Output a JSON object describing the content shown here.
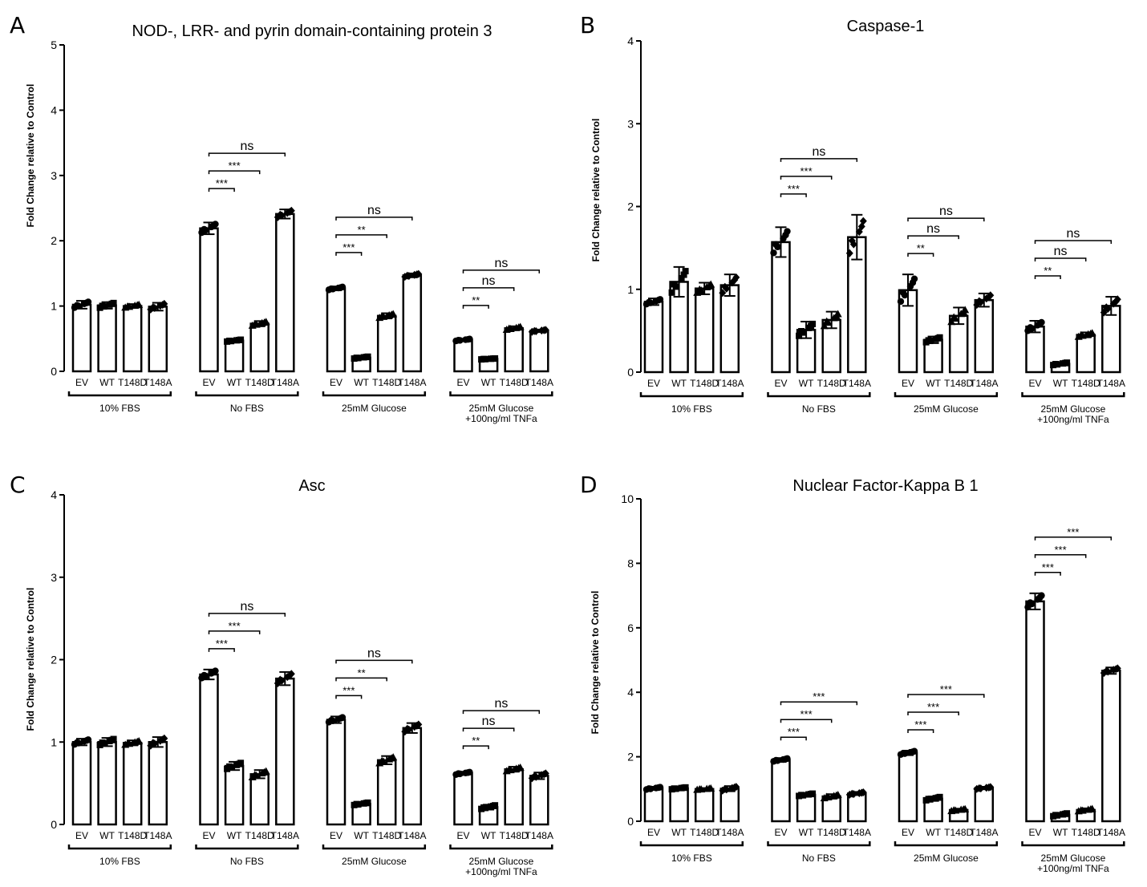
{
  "figure": {
    "panels": [
      {
        "letter": "A",
        "title": "NOD-, LRR- and pyrin domain-containing protein 3",
        "ylabel": "Fold Change relative to Control"
      },
      {
        "letter": "B",
        "title": "Caspase-1",
        "ylabel": "Fold Change relative to Control"
      },
      {
        "letter": "C",
        "title": "Asc",
        "ylabel": "Fold Change relative to Control"
      },
      {
        "letter": "D",
        "title": "Nuclear Factor-Kappa B 1",
        "ylabel": "Fold Change relative to Control"
      }
    ]
  },
  "chart_data": [
    {
      "type": "bar",
      "title": "NOD-, LRR- and pyrin domain-containing protein 3",
      "ylabel": "Fold Change relative to Control",
      "ylim": [
        0,
        5
      ],
      "yticks": [
        "0",
        "1",
        "2",
        "3",
        "4",
        "5"
      ],
      "categories": [
        "EV",
        "WT",
        "T148D",
        "T148A"
      ],
      "groups": [
        {
          "label": "10% FBS",
          "values": [
            1.02,
            1.01,
            1.0,
            0.99
          ],
          "errors": [
            0.06,
            0.05,
            0.03,
            0.06
          ],
          "sig": []
        },
        {
          "label": "No FBS",
          "values": [
            2.19,
            0.47,
            0.73,
            2.41
          ],
          "errors": [
            0.09,
            0.02,
            0.04,
            0.07
          ],
          "sig": [
            {
              "to": 1,
              "text": "***"
            },
            {
              "to": 2,
              "text": "***"
            },
            {
              "to": 3,
              "text": "ns"
            }
          ]
        },
        {
          "label": "25mM Glucose",
          "values": [
            1.27,
            0.21,
            0.85,
            1.47
          ],
          "errors": [
            0.03,
            0.02,
            0.04,
            0.03
          ],
          "sig": [
            {
              "to": 1,
              "text": "***"
            },
            {
              "to": 2,
              "text": "**"
            },
            {
              "to": 3,
              "text": "ns"
            }
          ]
        },
        {
          "label": "25mM Glucose\n+100ng/ml TNFa",
          "values": [
            0.48,
            0.19,
            0.66,
            0.62
          ],
          "errors": [
            0.02,
            0.01,
            0.03,
            0.02
          ],
          "sig": [
            {
              "to": 1,
              "text": "**"
            },
            {
              "to": 2,
              "text": "ns"
            },
            {
              "to": 3,
              "text": "ns"
            }
          ]
        }
      ]
    },
    {
      "type": "bar",
      "title": "Caspase-1",
      "ylabel": "Fold Change relative to Control",
      "ylim": [
        0,
        4
      ],
      "yticks": [
        "0",
        "1",
        "2",
        "3",
        "4"
      ],
      "categories": [
        "EV",
        "WT",
        "T148D",
        "T148A"
      ],
      "groups": [
        {
          "label": "10% FBS",
          "values": [
            0.85,
            1.09,
            1.01,
            1.05
          ],
          "errors": [
            0.04,
            0.18,
            0.07,
            0.13
          ],
          "sig": []
        },
        {
          "label": "No FBS",
          "values": [
            1.57,
            0.51,
            0.63,
            1.63
          ],
          "errors": [
            0.18,
            0.1,
            0.1,
            0.27
          ],
          "sig": [
            {
              "to": 1,
              "text": "***"
            },
            {
              "to": 2,
              "text": "***"
            },
            {
              "to": 3,
              "text": "ns"
            }
          ]
        },
        {
          "label": "25mM Glucose",
          "values": [
            0.99,
            0.39,
            0.68,
            0.87
          ],
          "errors": [
            0.19,
            0.04,
            0.1,
            0.08
          ],
          "sig": [
            {
              "to": 1,
              "text": "**"
            },
            {
              "to": 2,
              "text": "ns"
            },
            {
              "to": 3,
              "text": "ns"
            }
          ]
        },
        {
          "label": "25mM Glucose\n+100ng/ml TNFa",
          "values": [
            0.55,
            0.1,
            0.45,
            0.8
          ],
          "errors": [
            0.07,
            0.02,
            0.03,
            0.11
          ],
          "sig": [
            {
              "to": 1,
              "text": "**"
            },
            {
              "to": 2,
              "text": "ns"
            },
            {
              "to": 3,
              "text": "ns"
            }
          ]
        }
      ]
    },
    {
      "type": "bar",
      "title": "Asc",
      "ylabel": "Fold Change relative to Control",
      "ylim": [
        0,
        4
      ],
      "yticks": [
        "0",
        "1",
        "2",
        "3",
        "4"
      ],
      "categories": [
        "EV",
        "WT",
        "T148D",
        "T148A"
      ],
      "groups": [
        {
          "label": "10% FBS",
          "values": [
            1.0,
            1.0,
            0.99,
            1.0
          ],
          "errors": [
            0.04,
            0.05,
            0.03,
            0.06
          ],
          "sig": []
        },
        {
          "label": "No FBS",
          "values": [
            1.82,
            0.71,
            0.61,
            1.77
          ],
          "errors": [
            0.06,
            0.05,
            0.05,
            0.08
          ],
          "sig": [
            {
              "to": 1,
              "text": "***"
            },
            {
              "to": 2,
              "text": "***"
            },
            {
              "to": 3,
              "text": "ns"
            }
          ]
        },
        {
          "label": "25mM Glucose",
          "values": [
            1.27,
            0.25,
            0.78,
            1.17
          ],
          "errors": [
            0.04,
            0.02,
            0.05,
            0.06
          ],
          "sig": [
            {
              "to": 1,
              "text": "***"
            },
            {
              "to": 2,
              "text": "**"
            },
            {
              "to": 3,
              "text": "ns"
            }
          ]
        },
        {
          "label": "25mM Glucose\n+100ng/ml TNFa",
          "values": [
            0.62,
            0.21,
            0.67,
            0.59
          ],
          "errors": [
            0.02,
            0.03,
            0.03,
            0.04
          ],
          "sig": [
            {
              "to": 1,
              "text": "**"
            },
            {
              "to": 2,
              "text": "ns"
            },
            {
              "to": 3,
              "text": "ns"
            }
          ]
        }
      ]
    },
    {
      "type": "bar",
      "title": "Nuclear Factor-Kappa B 1",
      "ylabel": "Fold Change relative to Control",
      "ylim": [
        0,
        10
      ],
      "yticks": [
        "0",
        "2",
        "4",
        "6",
        "8",
        "10"
      ],
      "categories": [
        "EV",
        "WT",
        "T148D",
        "T148A"
      ],
      "groups": [
        {
          "label": "10% FBS",
          "values": [
            1.02,
            1.02,
            1.0,
            1.01
          ],
          "errors": [
            0.05,
            0.04,
            0.03,
            0.08
          ],
          "sig": []
        },
        {
          "label": "No FBS",
          "values": [
            1.9,
            0.82,
            0.77,
            0.86
          ],
          "errors": [
            0.06,
            0.05,
            0.07,
            0.05
          ],
          "sig": [
            {
              "to": 1,
              "text": "***"
            },
            {
              "to": 2,
              "text": "***"
            },
            {
              "to": 3,
              "text": "***"
            }
          ]
        },
        {
          "label": "25mM Glucose",
          "values": [
            2.12,
            0.7,
            0.35,
            1.03
          ],
          "errors": [
            0.07,
            0.07,
            0.04,
            0.04
          ],
          "sig": [
            {
              "to": 1,
              "text": "***"
            },
            {
              "to": 2,
              "text": "***"
            },
            {
              "to": 3,
              "text": "***"
            }
          ]
        },
        {
          "label": "25mM Glucose\n+100ng/ml TNFa",
          "values": [
            6.82,
            0.2,
            0.35,
            4.67
          ],
          "errors": [
            0.25,
            0.06,
            0.05,
            0.1
          ],
          "sig": [
            {
              "to": 1,
              "text": "***"
            },
            {
              "to": 2,
              "text": "***"
            },
            {
              "to": 3,
              "text": "***"
            }
          ]
        }
      ]
    }
  ]
}
